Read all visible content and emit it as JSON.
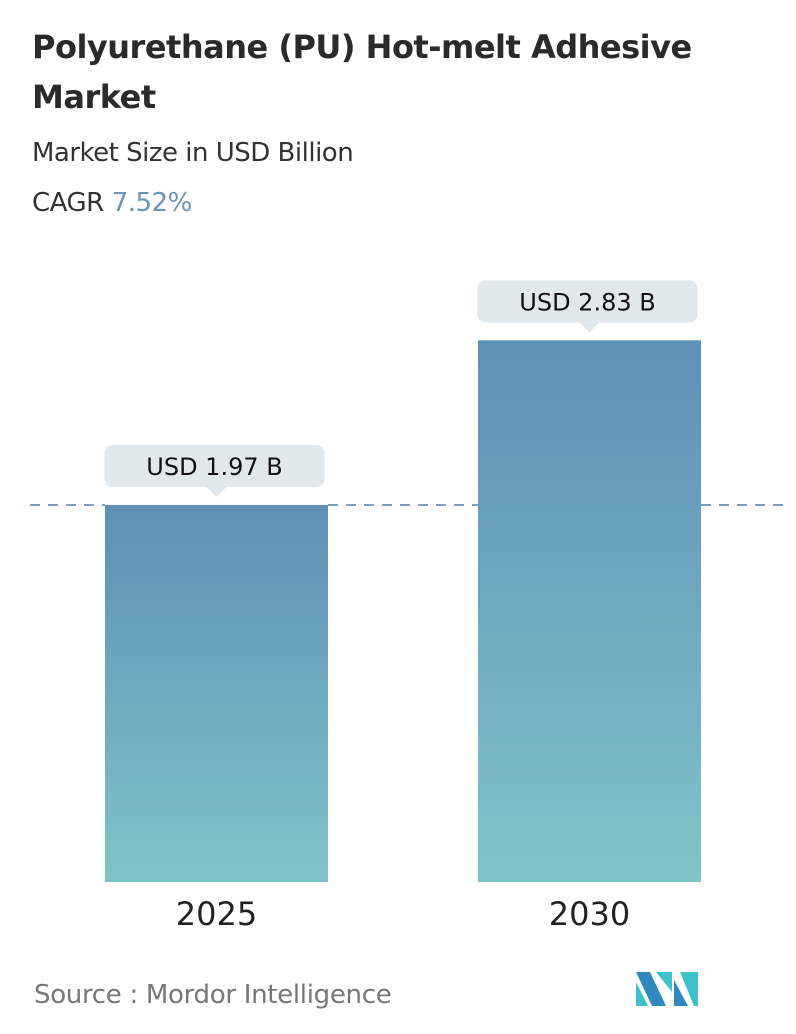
{
  "title": "Polyurethane (PU) Hot-melt Adhesive Market",
  "subtitle": "Market Size in USD Billion",
  "cagr_label": "CAGR",
  "cagr_value": "7.52%",
  "source": "Source :  Mordor Intelligence",
  "logo_text": "MI",
  "colors": {
    "bar_top": "#5e8fb6",
    "bar_bottom": "#80c3c8",
    "label_bg": "#e1e8ec",
    "dash": "#4f7ea6",
    "accent": "#6b93b8"
  },
  "chart_data": {
    "type": "bar",
    "categories": [
      "2025",
      "2030"
    ],
    "values": [
      1.97,
      2.83
    ],
    "data_labels": [
      "USD 1.97 B",
      "USD 2.83 B"
    ],
    "title": "Polyurethane (PU) Hot-melt Adhesive Market",
    "subtitle": "Market Size in USD Billion",
    "xlabel": "",
    "ylabel": "",
    "reference_line": 1.97,
    "grid": false
  }
}
